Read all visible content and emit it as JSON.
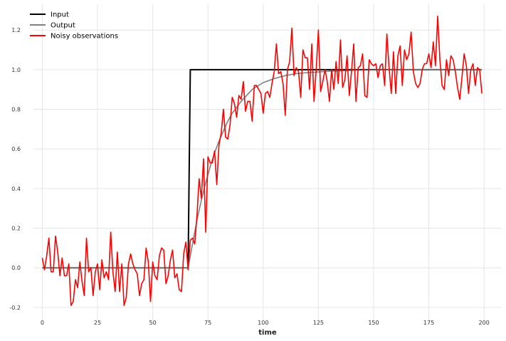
{
  "chart_data": {
    "type": "line",
    "title": "",
    "xlabel": "time",
    "ylabel": "",
    "xlim": [
      -4,
      208
    ],
    "ylim": [
      -0.265,
      1.33
    ],
    "xticks": [
      0,
      25,
      50,
      75,
      100,
      125,
      150,
      175,
      200
    ],
    "yticks": [
      -0.2,
      0.0,
      0.2,
      0.4,
      0.6,
      0.8,
      1.0,
      1.2
    ],
    "grid": true,
    "legend_position": "top-left",
    "series": [
      {
        "name": "Input",
        "color": "#000000",
        "x": [
          0,
          66,
          67,
          199
        ],
        "y": [
          0.0,
          0.0,
          1.0,
          1.0
        ]
      },
      {
        "name": "Output",
        "color": "#808080",
        "x": [
          0,
          66,
          68,
          70,
          72,
          74,
          76,
          78,
          80,
          82,
          84,
          86,
          88,
          90,
          95,
          100,
          105,
          110,
          115,
          120,
          130,
          140,
          150,
          160,
          170,
          180,
          190,
          199
        ],
        "y": [
          0.0,
          0.0,
          0.12,
          0.24,
          0.34,
          0.43,
          0.51,
          0.58,
          0.64,
          0.69,
          0.74,
          0.78,
          0.81,
          0.84,
          0.9,
          0.935,
          0.955,
          0.97,
          0.98,
          0.985,
          0.992,
          0.996,
          0.998,
          0.999,
          1.0,
          1.0,
          1.0,
          1.0
        ]
      },
      {
        "name": "Noisy observations",
        "color": "#ff0000",
        "x": [
          0,
          1,
          2,
          3,
          4,
          5,
          6,
          7,
          8,
          9,
          10,
          11,
          12,
          13,
          14,
          15,
          16,
          17,
          18,
          19,
          20,
          21,
          22,
          23,
          24,
          25,
          26,
          27,
          28,
          29,
          30,
          31,
          32,
          33,
          34,
          35,
          36,
          37,
          38,
          39,
          40,
          41,
          42,
          43,
          44,
          45,
          46,
          47,
          48,
          49,
          50,
          51,
          52,
          53,
          54,
          55,
          56,
          57,
          58,
          59,
          60,
          61,
          62,
          63,
          64,
          65,
          66,
          67,
          68,
          69,
          70,
          71,
          72,
          73,
          74,
          75,
          76,
          77,
          78,
          79,
          80,
          81,
          82,
          83,
          84,
          85,
          86,
          87,
          88,
          89,
          90,
          91,
          92,
          93,
          94,
          95,
          96,
          97,
          98,
          99,
          100,
          101,
          102,
          103,
          104,
          105,
          106,
          107,
          108,
          109,
          110,
          111,
          112,
          113,
          114,
          115,
          116,
          117,
          118,
          119,
          120,
          121,
          122,
          123,
          124,
          125,
          126,
          127,
          128,
          129,
          130,
          131,
          132,
          133,
          134,
          135,
          136,
          137,
          138,
          139,
          140,
          141,
          142,
          143,
          144,
          145,
          146,
          147,
          148,
          149,
          150,
          151,
          152,
          153,
          154,
          155,
          156,
          157,
          158,
          159,
          160,
          161,
          162,
          163,
          164,
          165,
          166,
          167,
          168,
          169,
          170,
          171,
          172,
          173,
          174,
          175,
          176,
          177,
          178,
          179,
          180,
          181,
          182,
          183,
          184,
          185,
          186,
          187,
          188,
          189,
          190,
          191,
          192,
          193,
          194,
          195,
          196,
          197,
          198,
          199
        ],
        "y": [
          0.05,
          -0.01,
          0.06,
          0.15,
          -0.02,
          -0.02,
          0.16,
          0.08,
          -0.04,
          0.05,
          -0.04,
          -0.04,
          0.02,
          -0.19,
          -0.17,
          -0.06,
          -0.1,
          0.03,
          -0.07,
          -0.14,
          0.15,
          -0.02,
          0.0,
          -0.14,
          -0.02,
          0.02,
          -0.11,
          0.04,
          -0.05,
          -0.02,
          -0.06,
          0.18,
          -0.02,
          -0.12,
          0.08,
          -0.12,
          0.02,
          -0.19,
          -0.15,
          0.02,
          0.07,
          0.02,
          -0.01,
          -0.03,
          -0.14,
          -0.08,
          -0.06,
          0.1,
          0.03,
          -0.17,
          0.03,
          -0.04,
          -0.06,
          0.06,
          0.1,
          0.09,
          -0.08,
          -0.04,
          0.04,
          0.09,
          -0.05,
          -0.03,
          -0.11,
          -0.12,
          0.07,
          0.13,
          -0.01,
          0.14,
          0.15,
          0.12,
          0.26,
          0.45,
          0.35,
          0.55,
          0.18,
          0.56,
          0.53,
          0.53,
          0.59,
          0.42,
          0.62,
          0.68,
          0.8,
          0.66,
          0.65,
          0.72,
          0.86,
          0.83,
          0.76,
          0.87,
          0.85,
          0.94,
          0.79,
          0.84,
          0.84,
          0.74,
          0.92,
          0.92,
          0.9,
          0.88,
          0.78,
          0.88,
          0.89,
          0.86,
          0.93,
          0.99,
          1.13,
          0.98,
          0.99,
          0.93,
          0.77,
          1.0,
          1.04,
          1.21,
          0.97,
          1.01,
          0.99,
          0.86,
          1.1,
          1.06,
          1.06,
          0.9,
          1.13,
          0.84,
          1.0,
          1.2,
          0.89,
          0.94,
          1.0,
          0.94,
          0.84,
          1.0,
          0.9,
          1.04,
          0.93,
          1.15,
          0.91,
          0.95,
          1.07,
          0.87,
          0.99,
          1.13,
          0.84,
          1.01,
          1.02,
          1.08,
          0.87,
          0.86,
          1.05,
          1.03,
          1.02,
          1.03,
          0.96,
          1.02,
          1.03,
          0.92,
          1.18,
          1.01,
          0.88,
          1.09,
          0.88,
          1.07,
          1.12,
          0.92,
          1.1,
          1.05,
          1.08,
          1.19,
          0.99,
          0.93,
          0.91,
          0.93,
          1.0,
          1.03,
          1.03,
          1.08,
          1.01,
          1.14,
          1.02,
          1.27,
          1.05,
          0.92,
          0.9,
          1.05,
          0.97,
          1.07,
          1.05,
          0.99,
          0.91,
          0.85,
          0.96,
          1.08,
          1.02,
          0.88,
          1.0,
          1.03,
          0.92,
          1.01,
          1.0,
          0.88
        ]
      }
    ]
  }
}
